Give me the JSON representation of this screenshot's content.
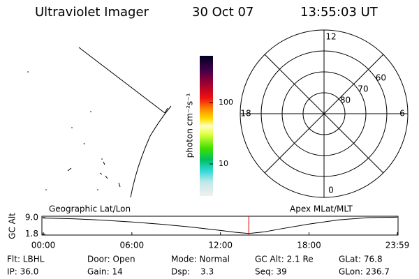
{
  "header": {
    "title": "Ultraviolet Imager",
    "date": "30 Oct 07",
    "time": "13:55:03 UT"
  },
  "colorbar": {
    "label": "photon cm⁻²s⁻¹",
    "log": true,
    "ylim": [
      3,
      580
    ],
    "yticks": [
      10,
      100
    ]
  },
  "polar": {
    "rlim": [
      90,
      50
    ],
    "rticks": [
      80,
      70,
      60
    ],
    "mlt_ticks": [
      12,
      6,
      0,
      18
    ]
  },
  "timeline": {
    "left_label": "Geographic Lat/Lon",
    "right_label": "Apex MLat/MLT",
    "ylabel": "GC Alt",
    "ylim": [
      1.4,
      9.6
    ],
    "yticks": [
      {
        "value": 9,
        "label": "9.0"
      },
      {
        "value": 1.8,
        "label": "1.8"
      }
    ],
    "xlim": [
      0,
      23.983
    ],
    "xticks": [
      {
        "value": 0,
        "label": "00:00"
      },
      {
        "value": 6,
        "label": "06:00"
      },
      {
        "value": 12,
        "label": "12:00"
      },
      {
        "value": 18,
        "label": "18:00"
      },
      {
        "value": 23.983,
        "label": "23:59"
      }
    ],
    "x": [
      0,
      2,
      4,
      6,
      8,
      10,
      12,
      13,
      13.918,
      15,
      16,
      18,
      20,
      22,
      23.983
    ],
    "values": [
      8.8,
      8.5,
      7.9,
      7.1,
      6.1,
      4.9,
      3.4,
      2.6,
      2.1,
      2.8,
      4.0,
      6.2,
      8.0,
      9.0,
      9.2
    ],
    "current_time": 13.918,
    "line_color": "#000000",
    "marker_color": "#e00000"
  },
  "info": [
    "Flt: LBHL",
    "IP: 36.0",
    "Door: Open",
    "Gain: 14",
    "Mode: Normal",
    "Dsp:",
    "3.3",
    "GC Alt: 2.1 Re",
    "Seq: 39",
    "GLat: 76.8",
    "GLon: 236.7"
  ]
}
